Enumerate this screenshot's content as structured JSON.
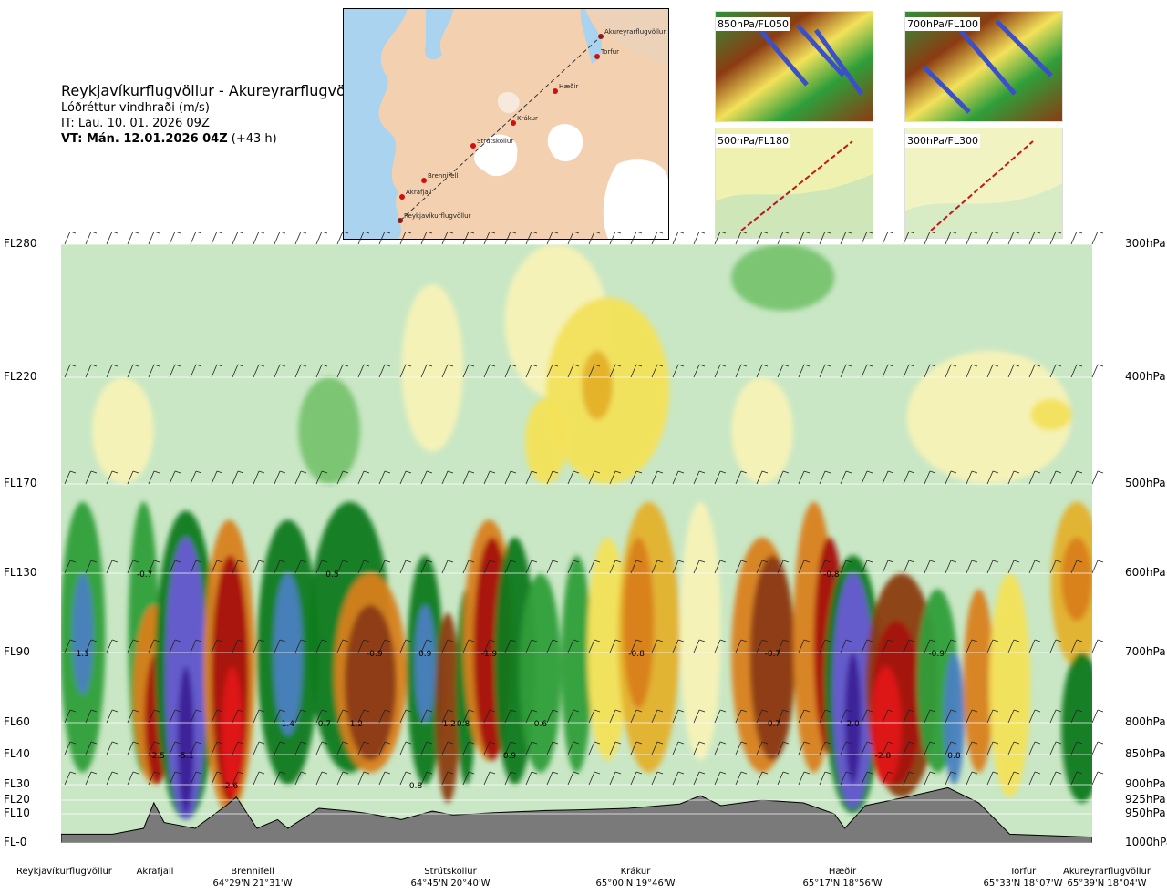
{
  "header": {
    "route": "Reykjavíkurflugvöllur - Akureyrarflugvöllur",
    "parameter": "Lóðréttur vindhraði (m/s)",
    "issue_time": "IT: Lau. 10. 01. 2026 09Z",
    "valid_time_bold": "VT: Mán. 12.01.2026 04Z",
    "valid_time_offset": " (+43 h)"
  },
  "map": {
    "stations": [
      "Akureyrarflugvöllur",
      "Torfur",
      "Hæðir",
      "Krákur",
      "Strútskollur",
      "Brennifell",
      "Akrafjall",
      "Reykjavíkurflugvöllur"
    ]
  },
  "thumbnails": [
    {
      "label": "850hPa/FL050"
    },
    {
      "label": "700hPa/FL100"
    },
    {
      "label": "500hPa/FL180"
    },
    {
      "label": "300hPa/FL300"
    }
  ],
  "chart_data": {
    "type": "heatmap",
    "description_field": "vertical wind speed cross-section along route",
    "y_axis_left_levels": [
      "FL280",
      "FL220",
      "FL170",
      "FL130",
      "FL90",
      "FL60",
      "FL40",
      "FL30",
      "FL20",
      "FL10",
      "FL-0"
    ],
    "y_axis_right_levels": [
      "300hPa",
      "400hPa",
      "500hPa",
      "600hPa",
      "700hPa",
      "800hPa",
      "850hPa",
      "900hPa",
      "925hPa",
      "950hPa",
      "1000hPa"
    ],
    "level_pressure_hpa": [
      300,
      400,
      500,
      600,
      700,
      800,
      850,
      900,
      925,
      950,
      1000
    ],
    "waypoints": [
      {
        "name": "Reykjavíkurflugvöllur",
        "coord": "",
        "route_pos": 0.0
      },
      {
        "name": "Akrafjall",
        "coord": "",
        "route_pos": 0.089
      },
      {
        "name": "Brennifell",
        "coord": "64°29'N 21°31'W",
        "route_pos": 0.18
      },
      {
        "name": "Strútskollur",
        "coord": "64°45'N 20°40'W",
        "route_pos": 0.38
      },
      {
        "name": "Krákur",
        "coord": "65°00'N 19°46'W",
        "route_pos": 0.57
      },
      {
        "name": "Hæðir",
        "coord": "65°17'N 18°56'W",
        "route_pos": 0.76
      },
      {
        "name": "Torfur",
        "coord": "65°33'N 18°07'W",
        "route_pos": 0.95
      },
      {
        "name": "Akureyrarflugvöllur",
        "coord": "65°39'N 18°04'W",
        "route_pos": 1.0
      }
    ],
    "value_labels": [
      {
        "text": "1.1",
        "route_pos": 0.021,
        "hpa": 700
      },
      {
        "text": "-0.7",
        "route_pos": 0.081,
        "hpa": 600
      },
      {
        "text": "-2.5",
        "route_pos": 0.093,
        "hpa": 850
      },
      {
        "text": "-5.1",
        "route_pos": 0.121,
        "hpa": 850
      },
      {
        "text": "-2.6",
        "route_pos": 0.164,
        "hpa": 900
      },
      {
        "text": "1.4",
        "route_pos": 0.22,
        "hpa": 800
      },
      {
        "text": "-0.7",
        "route_pos": 0.254,
        "hpa": 800
      },
      {
        "text": "-1.2",
        "route_pos": 0.285,
        "hpa": 800
      },
      {
        "text": "0.5",
        "route_pos": 0.263,
        "hpa": 600
      },
      {
        "text": "-0.9",
        "route_pos": 0.304,
        "hpa": 700
      },
      {
        "text": "0.9",
        "route_pos": 0.353,
        "hpa": 700
      },
      {
        "text": "-1.9",
        "route_pos": 0.415,
        "hpa": 700
      },
      {
        "text": "0.8",
        "route_pos": 0.344,
        "hpa": 900
      },
      {
        "text": "-1.2",
        "route_pos": 0.375,
        "hpa": 800
      },
      {
        "text": "0.8",
        "route_pos": 0.39,
        "hpa": 800
      },
      {
        "text": "0.9",
        "route_pos": 0.435,
        "hpa": 850
      },
      {
        "text": "0.6",
        "route_pos": 0.465,
        "hpa": 800
      },
      {
        "text": "-0.8",
        "route_pos": 0.558,
        "hpa": 700
      },
      {
        "text": "-0.7",
        "route_pos": 0.69,
        "hpa": 700
      },
      {
        "text": "-0.7",
        "route_pos": 0.69,
        "hpa": 800
      },
      {
        "text": "-0.8",
        "route_pos": 0.747,
        "hpa": 600
      },
      {
        "text": "2.0",
        "route_pos": 0.768,
        "hpa": 800
      },
      {
        "text": "-2.8",
        "route_pos": 0.797,
        "hpa": 850
      },
      {
        "text": "-0.9",
        "route_pos": 0.849,
        "hpa": 700
      },
      {
        "text": "0.8",
        "route_pos": 0.866,
        "hpa": 850
      }
    ],
    "colors": {
      "strong_up": "#3b1f96",
      "up_4": "#6a5ad6",
      "up_3": "#4a7fc1",
      "up_2": "#0a7a1e",
      "up_1": "#2f9e3a",
      "up_05": "#77c36f",
      "weak": "#c9e7c5",
      "neutral": "#f7f2b6",
      "down_05": "#f3e15a",
      "down_1": "#e4b12a",
      "down_2": "#d9801d",
      "down_3": "#8b3b12",
      "down_4": "#a5110d",
      "strong_down": "#e0141a",
      "terrain": "#7a7a7a"
    }
  }
}
